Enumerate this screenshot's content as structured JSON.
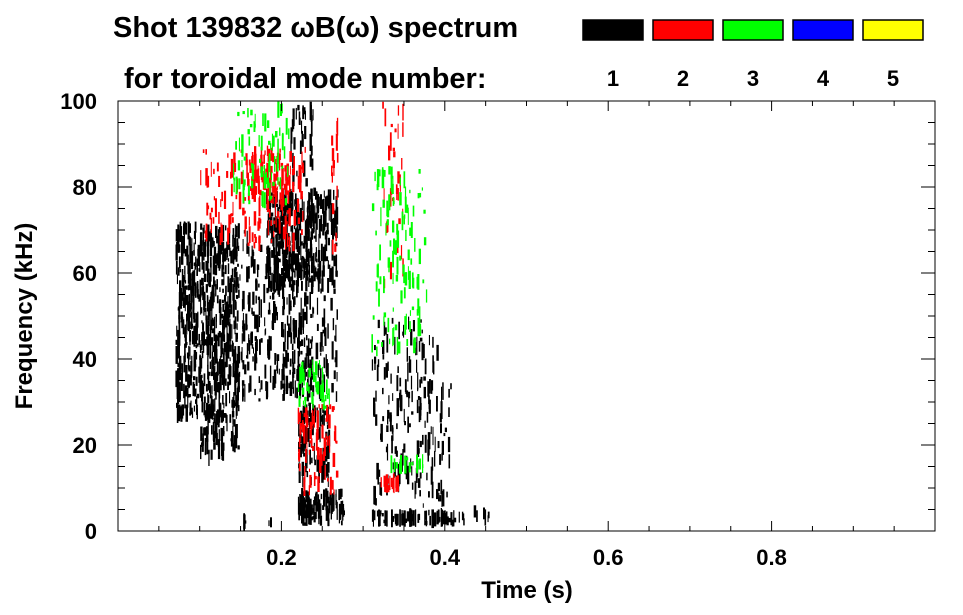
{
  "chart_data": {
    "type": "heatmap",
    "title_line1": "Shot 139832 ωB(ω) spectrum",
    "title_line2": "for toroidal mode number:",
    "xlabel": "Time (s)",
    "ylabel": "Frequency (kHz)",
    "xlim": [
      0.0,
      1.0
    ],
    "ylim": [
      0,
      100
    ],
    "x_ticks": [
      0.2,
      0.4,
      0.6,
      0.8
    ],
    "x_tick_labels": [
      "0.2",
      "0.4",
      "0.6",
      "0.8"
    ],
    "y_ticks": [
      0,
      20,
      40,
      60,
      80,
      100
    ],
    "y_tick_labels": [
      "0",
      "20",
      "40",
      "60",
      "80",
      "100"
    ],
    "legend_placement": "top",
    "legend": [
      {
        "mode": "1",
        "color": "#000000"
      },
      {
        "mode": "2",
        "color": "#ff0000"
      },
      {
        "mode": "3",
        "color": "#00ff00"
      },
      {
        "mode": "4",
        "color": "#0000ff"
      },
      {
        "mode": "5",
        "color": "#ffff00"
      }
    ],
    "series": [
      {
        "name": "1",
        "color": "#000000",
        "regions": [
          {
            "t": [
              0.07,
              0.15
            ],
            "f": [
              25,
              72
            ],
            "density": 0.9
          },
          {
            "t": [
              0.1,
              0.15
            ],
            "f": [
              15,
              30
            ],
            "density": 0.4
          },
          {
            "t": [
              0.15,
              0.24
            ],
            "f": [
              30,
              70
            ],
            "density": 0.35
          },
          {
            "t": [
              0.18,
              0.27
            ],
            "f": [
              55,
              80
            ],
            "density": 0.85
          },
          {
            "t": [
              0.2,
              0.27
            ],
            "f": [
              30,
              55
            ],
            "density": 0.3
          },
          {
            "t": [
              0.21,
              0.24
            ],
            "f": [
              80,
              100
            ],
            "density": 0.3
          },
          {
            "t": [
              0.22,
              0.28
            ],
            "f": [
              1,
              10
            ],
            "density": 0.95
          },
          {
            "t": [
              0.22,
              0.26
            ],
            "f": [
              10,
              30
            ],
            "density": 0.6
          },
          {
            "t": [
              0.31,
              0.43
            ],
            "f": [
              1,
              5
            ],
            "density": 0.85
          },
          {
            "t": [
              0.31,
              0.4
            ],
            "f": [
              5,
              50
            ],
            "density": 0.18
          },
          {
            "t": [
              0.34,
              0.41
            ],
            "f": [
              5,
              40
            ],
            "density": 0.12
          },
          {
            "t": [
              0.15,
              0.16
            ],
            "f": [
              1,
              3
            ],
            "density": 0.7
          },
          {
            "t": [
              0.18,
              0.19
            ],
            "f": [
              1,
              3
            ],
            "density": 0.7
          },
          {
            "t": [
              0.43,
              0.46
            ],
            "f": [
              1,
              6
            ],
            "density": 0.2
          }
        ]
      },
      {
        "name": "2",
        "color": "#ff0000",
        "regions": [
          {
            "t": [
              0.1,
              0.23
            ],
            "f": [
              65,
              90
            ],
            "density": 0.25
          },
          {
            "t": [
              0.16,
              0.21
            ],
            "f": [
              78,
              88
            ],
            "density": 0.55
          },
          {
            "t": [
              0.22,
              0.27
            ],
            "f": [
              8,
              30
            ],
            "density": 0.35
          },
          {
            "t": [
              0.32,
              0.35
            ],
            "f": [
              9,
              13
            ],
            "density": 0.7
          },
          {
            "t": [
              0.26,
              0.27
            ],
            "f": [
              60,
              100
            ],
            "density": 0.2
          },
          {
            "t": [
              0.32,
              0.35
            ],
            "f": [
              55,
              100
            ],
            "density": 0.12
          }
        ]
      },
      {
        "name": "3",
        "color": "#00ff00",
        "regions": [
          {
            "t": [
              0.14,
              0.21
            ],
            "f": [
              75,
              100
            ],
            "density": 0.22
          },
          {
            "t": [
              0.22,
              0.26
            ],
            "f": [
              28,
              40
            ],
            "density": 0.45
          },
          {
            "t": [
              0.31,
              0.38
            ],
            "f": [
              40,
              85
            ],
            "density": 0.18
          },
          {
            "t": [
              0.33,
              0.38
            ],
            "f": [
              13,
              18
            ],
            "density": 0.3
          }
        ]
      },
      {
        "name": "4",
        "color": "#0000ff",
        "regions": []
      },
      {
        "name": "5",
        "color": "#ffff00",
        "regions": []
      }
    ]
  }
}
